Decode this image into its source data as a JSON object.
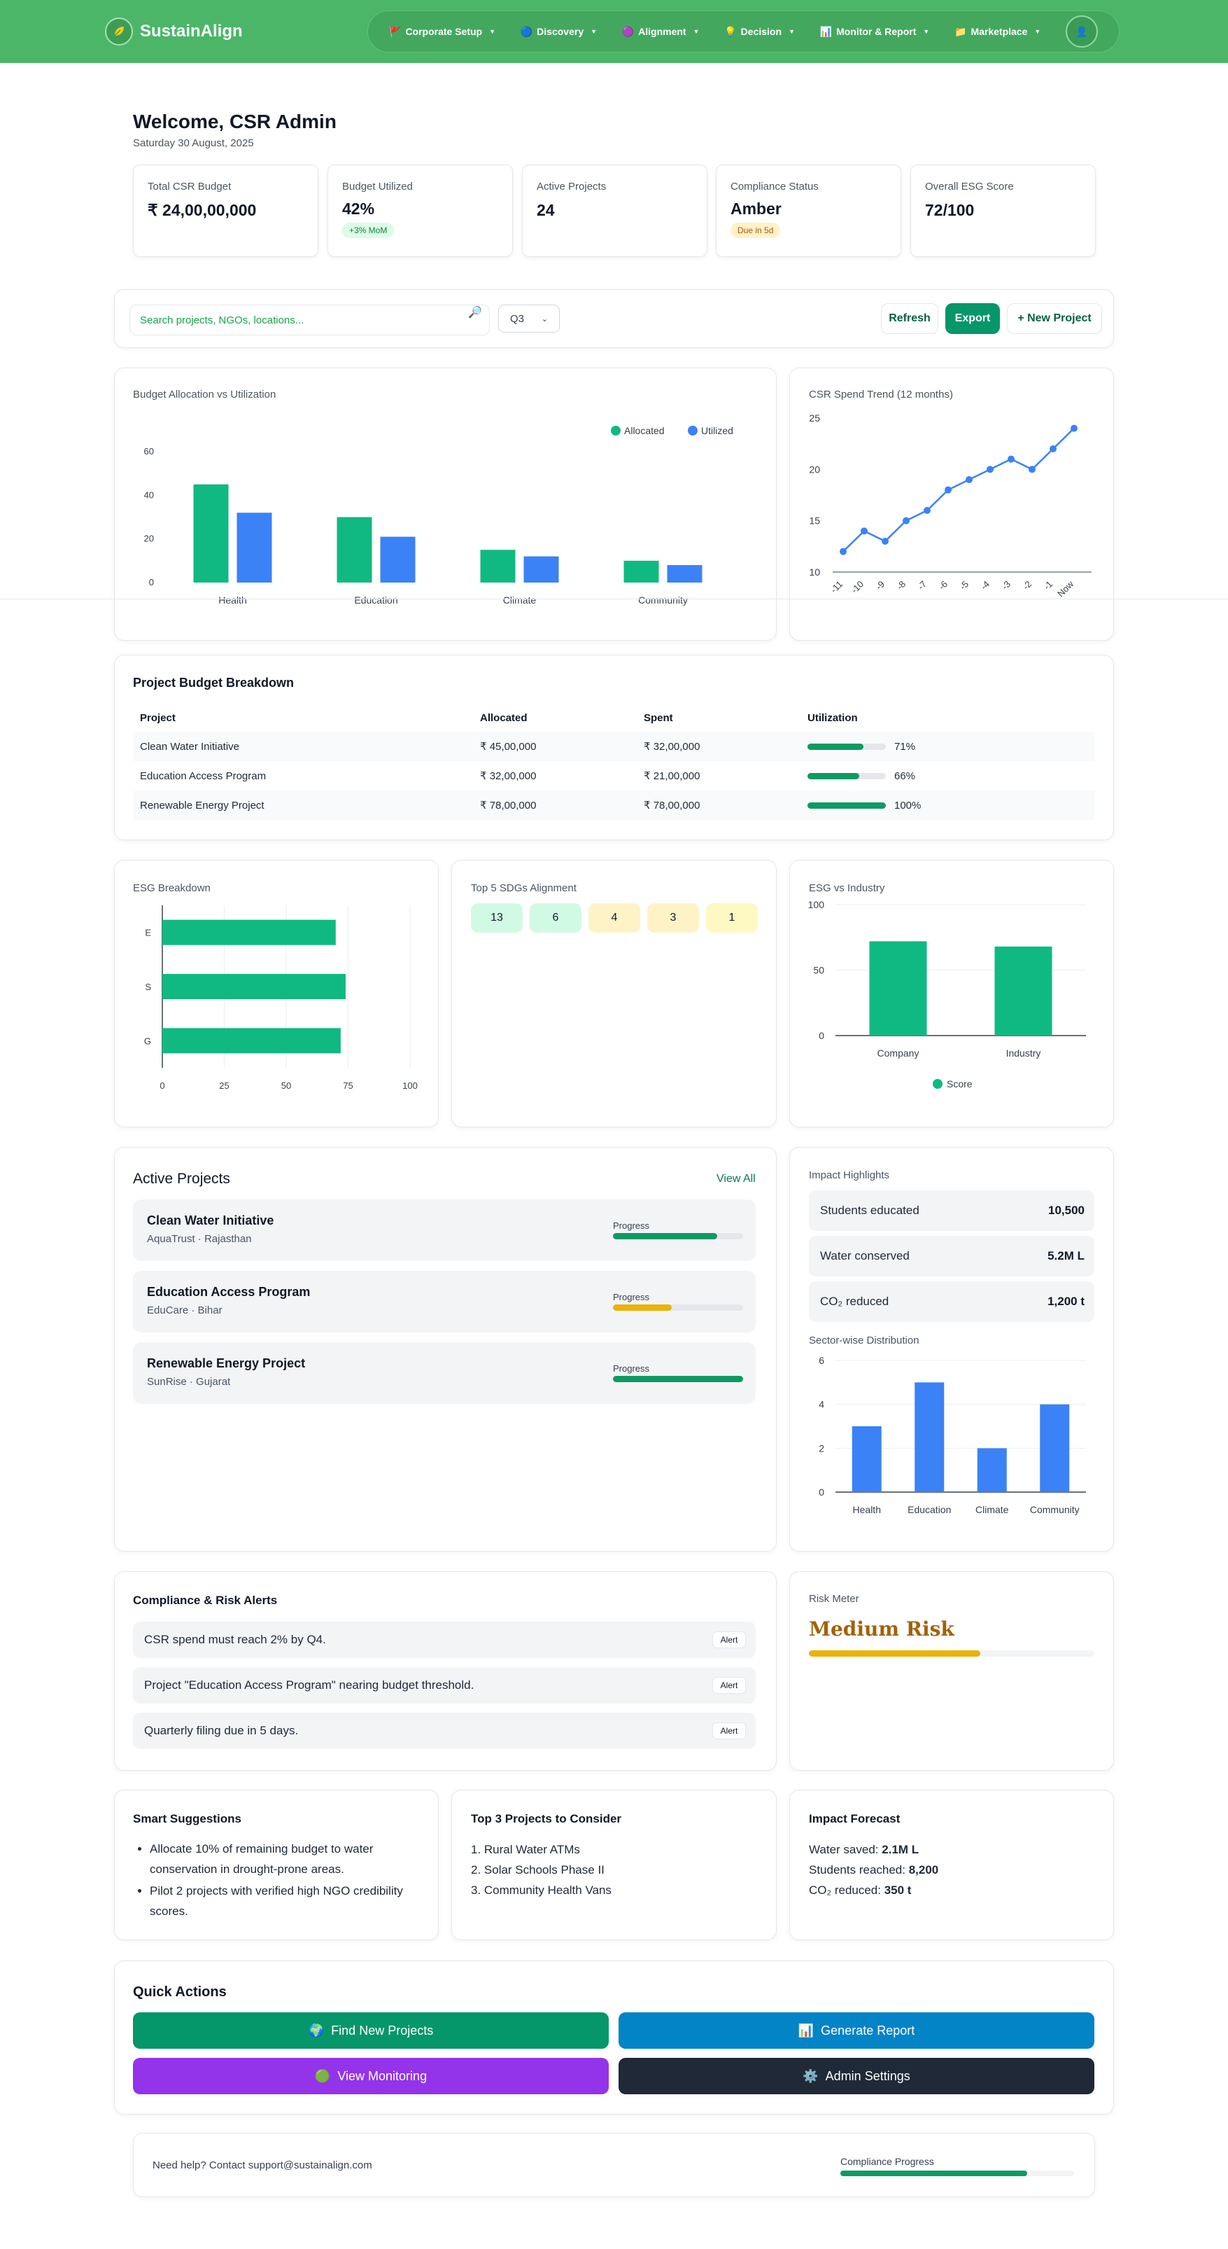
{
  "nav": {
    "brand": "SustainAlign",
    "items": [
      {
        "label": "Corporate Setup",
        "icon": "🚩"
      },
      {
        "label": "Discovery",
        "icon": "🔵"
      },
      {
        "label": "Alignment",
        "icon": "🟣"
      },
      {
        "label": "Decision",
        "icon": "💡"
      },
      {
        "label": "Monitor & Report",
        "icon": "📊"
      },
      {
        "label": "Marketplace",
        "icon": "📁"
      }
    ],
    "avatar_icon": "user-icon"
  },
  "header": {
    "welcome": "Welcome, CSR Admin",
    "date": "Saturday 30 August, 2025"
  },
  "kpis": [
    {
      "label": "Total CSR Budget",
      "value": "₹ 24,00,00,000",
      "badge": ""
    },
    {
      "label": "Budget Utilized",
      "value": "42%",
      "badge": "+3% MoM"
    },
    {
      "label": "Active Projects",
      "value": "24",
      "badge": ""
    },
    {
      "label": "Compliance Status",
      "value": "Amber",
      "badge": "Due in 5d"
    },
    {
      "label": "Overall ESG Score",
      "value": "72/100",
      "badge": ""
    }
  ],
  "toolbar": {
    "search_placeholder": "Search projects, NGOs, locations...",
    "quarter": "Q3",
    "refresh": "Refresh",
    "export": "Export",
    "new_project": "+ New Project"
  },
  "charts": {
    "budget_title": "Budget Allocation vs Utilization",
    "trend_title": "CSR Spend Trend (12 months)",
    "esg_title": "ESG Breakdown",
    "sdg_title": "Top 5 SDGs Alignment",
    "industry_title": "ESG vs Industry",
    "sector_title": "Sector-wise Distribution"
  },
  "chart_data": [
    {
      "type": "bar",
      "title": "Budget Allocation vs Utilization",
      "categories": [
        "Health",
        "Education",
        "Climate",
        "Community"
      ],
      "series": [
        {
          "name": "Allocated",
          "values": [
            45,
            30,
            15,
            10
          ],
          "color": "#10b981"
        },
        {
          "name": "Utilized",
          "values": [
            32,
            21,
            12,
            8
          ],
          "color": "#3b82f6"
        }
      ],
      "ylim": [
        0,
        60
      ],
      "yticks": [
        0,
        20,
        40,
        60
      ],
      "legend": "top-right"
    },
    {
      "type": "line",
      "title": "CSR Spend Trend (12 months)",
      "x": [
        "-11",
        "-10",
        "-9",
        "-8",
        "-7",
        "-6",
        "-5",
        "-4",
        "-3",
        "-2",
        "-1",
        "Now"
      ],
      "values": [
        12,
        14,
        13,
        15,
        16,
        18,
        19,
        20,
        21,
        20,
        22,
        24
      ],
      "ylim": [
        10,
        25
      ],
      "yticks": [
        10,
        15,
        20,
        25
      ],
      "color": "#3b82f6"
    },
    {
      "type": "bar",
      "orientation": "horizontal",
      "title": "ESG Breakdown",
      "categories": [
        "E",
        "S",
        "G"
      ],
      "values": [
        70,
        74,
        72
      ],
      "xlim": [
        0,
        100
      ],
      "xticks": [
        0,
        25,
        50,
        75,
        100
      ],
      "color": "#10b981"
    },
    {
      "type": "bar",
      "title": "ESG vs Industry",
      "categories": [
        "Company",
        "Industry"
      ],
      "series": [
        {
          "name": "Score",
          "values": [
            72,
            68
          ]
        }
      ],
      "ylim": [
        0,
        100
      ],
      "yticks": [
        0,
        50,
        100
      ],
      "color": "#10b981",
      "legend": "bottom"
    },
    {
      "type": "bar",
      "title": "Sector-wise Distribution",
      "categories": [
        "Health",
        "Education",
        "Climate",
        "Community"
      ],
      "values": [
        3,
        5,
        2,
        4
      ],
      "ylim": [
        0,
        6
      ],
      "yticks": [
        0,
        2,
        4,
        6
      ],
      "color": "#3b82f6"
    }
  ],
  "project_table": {
    "title": "Project Budget Breakdown",
    "headers": [
      "Project",
      "Allocated",
      "Spent",
      "Utilization"
    ],
    "rows": [
      {
        "project": "Clean Water Initiative",
        "allocated": "₹ 45,00,000",
        "spent": "₹ 32,00,000",
        "util": "71%",
        "pct": 71
      },
      {
        "project": "Education Access Program",
        "allocated": "₹ 32,00,000",
        "spent": "₹ 21,00,000",
        "util": "66%",
        "pct": 66
      },
      {
        "project": "Renewable Energy Project",
        "allocated": "₹ 78,00,000",
        "spent": "₹ 78,00,000",
        "util": "100%",
        "pct": 100
      }
    ]
  },
  "sdgs": [
    {
      "label": "13",
      "color": "#d1fae5"
    },
    {
      "label": "6",
      "color": "#d1fae5"
    },
    {
      "label": "4",
      "color": "#fef3c7"
    },
    {
      "label": "3",
      "color": "#fef3c7"
    },
    {
      "label": "1",
      "color": "#fef9c3"
    }
  ],
  "active_projects": {
    "title": "Active Projects",
    "view_all": "View All",
    "progress_label": "Progress",
    "items": [
      {
        "name": "Clean Water Initiative",
        "sub": "AquaTrust · Rajasthan",
        "progress": 0.8,
        "color": "#0f9a63"
      },
      {
        "name": "Education Access Program",
        "sub": "EduCare · Bihar",
        "progress": 0.45,
        "color": "#eab308"
      },
      {
        "name": "Renewable Energy Project",
        "sub": "SunRise · Gujarat",
        "progress": 1.0,
        "color": "#0f9a63"
      }
    ]
  },
  "impact": {
    "title": "Impact Highlights",
    "items": [
      {
        "label": "Students educated",
        "value": "10,500"
      },
      {
        "label": "Water conserved",
        "value": "5.2M L"
      },
      {
        "label": "CO₂ reduced",
        "value": "1,200 t"
      }
    ]
  },
  "compliance": {
    "title": "Compliance & Risk Alerts",
    "badge": "Alert",
    "alerts": [
      "CSR spend must reach 2% by Q4.",
      "Project \"Education Access Program\" nearing budget threshold.",
      "Quarterly filing due in 5 days."
    ]
  },
  "risk": {
    "title": "Risk Meter",
    "level": "Medium Risk",
    "value": 0.6,
    "color": "#eab308"
  },
  "suggestions": {
    "title": "Smart Suggestions",
    "items": [
      "Allocate 10% of remaining budget to water conservation in drought-prone areas.",
      "Pilot 2 projects with verified high NGO credibility scores."
    ]
  },
  "top_projects": {
    "title": "Top 3 Projects to Consider",
    "items": [
      "1. Rural Water ATMs",
      "2. Solar Schools Phase II",
      "3. Community Health Vans"
    ]
  },
  "forecast": {
    "title": "Impact Forecast",
    "items": [
      {
        "label": "Water saved:",
        "value": "2.1M L"
      },
      {
        "label": "Students reached:",
        "value": "8,200"
      },
      {
        "label": "CO₂ reduced:",
        "value": "350 t"
      }
    ]
  },
  "quick_actions": {
    "title": "Quick Actions",
    "items": [
      {
        "label": "Find New Projects",
        "icon": "🌍",
        "color": "#059669"
      },
      {
        "label": "Generate Report",
        "icon": "📊",
        "color": "#0284c7"
      },
      {
        "label": "View Monitoring",
        "icon": "🟢",
        "color": "#9333ea"
      },
      {
        "label": "Admin Settings",
        "icon": "⚙️",
        "color": "#1f2937"
      }
    ]
  },
  "footer": {
    "help": "Need help? Contact support@sustainalign.com",
    "progress_label": "Compliance Progress",
    "progress": 0.8
  }
}
